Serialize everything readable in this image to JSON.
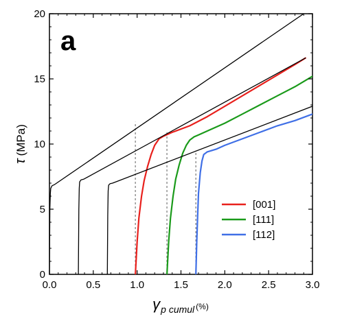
{
  "chart_data": {
    "type": "line",
    "panel_label": "a",
    "xlabel": {
      "symbol": "γ",
      "subscript": "p cumul",
      "unit": "(%)"
    },
    "ylabel": {
      "symbol": "τ",
      "unit": "(MPa)"
    },
    "xlim": [
      0,
      3.0
    ],
    "ylim": [
      0,
      20
    ],
    "xticks": [
      "0.0",
      "0.5",
      "1.0",
      "1.5",
      "2.0",
      "2.5",
      "3.0"
    ],
    "xtick_values": [
      0,
      0.5,
      1.0,
      1.5,
      2.0,
      2.5,
      3.0
    ],
    "yticks": [
      "0",
      "5",
      "10",
      "15",
      "20"
    ],
    "ytick_values": [
      0,
      5,
      10,
      15,
      20
    ],
    "grid": false,
    "legend_position": "bottom-right",
    "series": [
      {
        "name": "[001]",
        "color": "#e8201c",
        "x": [
          0.98,
          1.0,
          1.02,
          1.05,
          1.08,
          1.12,
          1.16,
          1.2,
          1.25,
          1.3,
          1.4,
          1.6,
          1.8,
          2.0,
          2.2,
          2.4,
          2.6,
          2.8,
          2.92
        ],
        "y": [
          0,
          2.5,
          4.3,
          6.0,
          7.2,
          8.3,
          9.2,
          9.9,
          10.4,
          10.6,
          10.9,
          11.4,
          12.1,
          12.9,
          13.7,
          14.5,
          15.3,
          16.1,
          16.6
        ]
      },
      {
        "name": "[111]",
        "color": "#1a9a1a",
        "x": [
          1.34,
          1.36,
          1.38,
          1.41,
          1.44,
          1.48,
          1.52,
          1.56,
          1.6,
          1.65,
          1.7,
          1.8,
          2.0,
          2.2,
          2.4,
          2.6,
          2.8,
          3.0
        ],
        "y": [
          0,
          2.5,
          4.3,
          6.0,
          7.3,
          8.4,
          9.3,
          9.9,
          10.3,
          10.55,
          10.7,
          11.0,
          11.6,
          12.3,
          13.0,
          13.7,
          14.4,
          15.2
        ]
      },
      {
        "name": "[112]",
        "color": "#3f6fe6",
        "x": [
          1.67,
          1.68,
          1.69,
          1.7,
          1.72,
          1.74,
          1.76,
          1.8,
          1.9,
          2.0,
          2.2,
          2.4,
          2.6,
          2.8,
          3.0
        ],
        "y": [
          0,
          2.5,
          4.5,
          6.2,
          7.8,
          8.7,
          9.2,
          9.4,
          9.6,
          9.9,
          10.4,
          10.9,
          11.4,
          11.8,
          12.3
        ]
      },
      {
        "color": "#000000",
        "x": [
          0.0,
          0.005,
          0.01,
          0.015,
          0.03,
          0.06,
          2.9
        ],
        "y": [
          0,
          5.0,
          6.2,
          6.6,
          6.8,
          6.9,
          20.0
        ]
      },
      {
        "color": "#000000",
        "x": [
          0.33,
          0.335,
          0.34,
          0.345,
          0.36,
          0.39,
          2.92
        ],
        "y": [
          0,
          5.0,
          6.6,
          7.1,
          7.25,
          7.3,
          16.6
        ]
      },
      {
        "color": "#000000",
        "x": [
          0.66,
          0.665,
          0.67,
          0.675,
          0.69,
          0.72,
          3.0
        ],
        "y": [
          0,
          4.5,
          6.4,
          6.85,
          6.95,
          7.0,
          12.9
        ]
      }
    ],
    "reference_lines": [
      {
        "x": 0.98,
        "y_top": 11.7
      },
      {
        "x": 1.34,
        "y_top": 11.0
      },
      {
        "x": 1.67,
        "y_top": 9.5
      }
    ]
  }
}
